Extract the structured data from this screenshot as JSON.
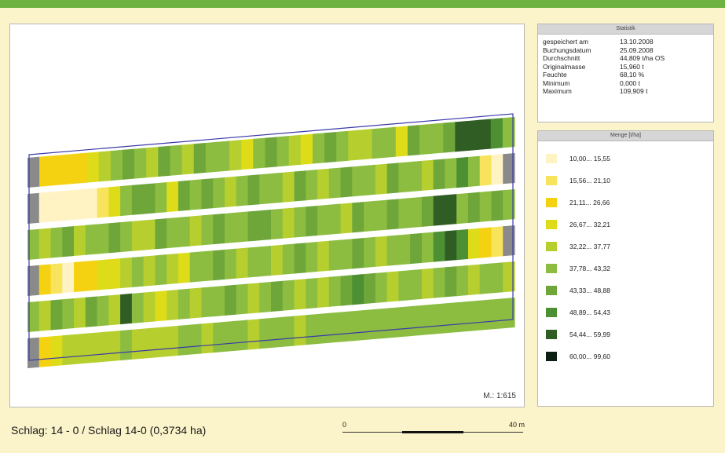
{
  "statistics": {
    "title": "Statistik",
    "rows": [
      {
        "label": "gespeichert am",
        "value": "13.10.2008"
      },
      {
        "label": "Buchungsdatum",
        "value": "25.09.2008"
      },
      {
        "label": "Durchschnitt",
        "value": "44,809 t/ha OS"
      },
      {
        "label": "Originalmasse",
        "value": "15,960 t"
      },
      {
        "label": "Feuchte",
        "value": "68,10 %"
      },
      {
        "label": "Minimum",
        "value": "0,000 t"
      },
      {
        "label": "Maximum",
        "value": "109,909 t"
      }
    ]
  },
  "legend": {
    "title": "Menge [t/ha]",
    "classes": [
      {
        "label": "10,00... 15,55",
        "color": "#fff3c4"
      },
      {
        "label": "15,56... 21,10",
        "color": "#f8e35c"
      },
      {
        "label": "21,11... 26,66",
        "color": "#f4d212"
      },
      {
        "label": "26,67... 32,21",
        "color": "#dedc18"
      },
      {
        "label": "32,22... 37,77",
        "color": "#b6cf2e"
      },
      {
        "label": "37,78... 43,32",
        "color": "#8cbd40"
      },
      {
        "label": "43,33... 48,88",
        "color": "#6ea63a"
      },
      {
        "label": "48,89... 54,43",
        "color": "#4d8f33"
      },
      {
        "label": "54,44... 59,99",
        "color": "#2f5d23"
      },
      {
        "label": "60,00... 99,60",
        "color": "#0d1f12"
      }
    ]
  },
  "map": {
    "scale_ratio": "M.: 1:615",
    "no_data_color": "#8a8a8a",
    "boundary_color": "#3a3aa8",
    "strips": [
      [
        0,
        3,
        3,
        3,
        3,
        4,
        5,
        6,
        7,
        6,
        5,
        7,
        6,
        5,
        7,
        6,
        6,
        5,
        4,
        6,
        7,
        6,
        5,
        4,
        6,
        7,
        6,
        5,
        5,
        6,
        6,
        4,
        7,
        6,
        6,
        7,
        9,
        9,
        9,
        8,
        6
      ],
      [
        0,
        1,
        1,
        1,
        1,
        1,
        2,
        4,
        6,
        7,
        7,
        6,
        4,
        7,
        6,
        7,
        6,
        5,
        6,
        7,
        6,
        6,
        5,
        7,
        6,
        5,
        6,
        7,
        6,
        6,
        5,
        7,
        6,
        6,
        5,
        7,
        6,
        8,
        6,
        2,
        1,
        0
      ],
      [
        6,
        5,
        6,
        7,
        5,
        6,
        6,
        7,
        6,
        5,
        5,
        7,
        6,
        6,
        5,
        6,
        7,
        6,
        6,
        7,
        7,
        6,
        5,
        6,
        7,
        6,
        6,
        5,
        7,
        6,
        6,
        7,
        6,
        6,
        7,
        9,
        9,
        6,
        7,
        6,
        7,
        6
      ],
      [
        0,
        3,
        2,
        1,
        3,
        3,
        4,
        4,
        5,
        6,
        5,
        6,
        5,
        4,
        6,
        6,
        7,
        6,
        5,
        6,
        6,
        5,
        6,
        7,
        6,
        5,
        6,
        6,
        7,
        6,
        5,
        6,
        6,
        7,
        6,
        8,
        9,
        8,
        4,
        3,
        2,
        0
      ],
      [
        6,
        5,
        7,
        6,
        5,
        7,
        6,
        5,
        9,
        6,
        5,
        4,
        5,
        6,
        5,
        6,
        6,
        7,
        6,
        5,
        6,
        7,
        6,
        5,
        6,
        5,
        6,
        7,
        8,
        7,
        6,
        5,
        6,
        6,
        5,
        6,
        7,
        6,
        5,
        6,
        6,
        5
      ],
      [
        0,
        3,
        4,
        5,
        5,
        5,
        5,
        5,
        6,
        5,
        5,
        5,
        5,
        6,
        6,
        5,
        6,
        6,
        6,
        5,
        6,
        6,
        6,
        5,
        6,
        6,
        6,
        6,
        6,
        6,
        6,
        6,
        6,
        6,
        6,
        6,
        6,
        6,
        6,
        6,
        6,
        6
      ]
    ]
  },
  "caption": "Schlag: 14 - 0 / Schlag 14-0 (0,3734 ha)",
  "scalebar": {
    "start": "0",
    "end": "40 m"
  }
}
